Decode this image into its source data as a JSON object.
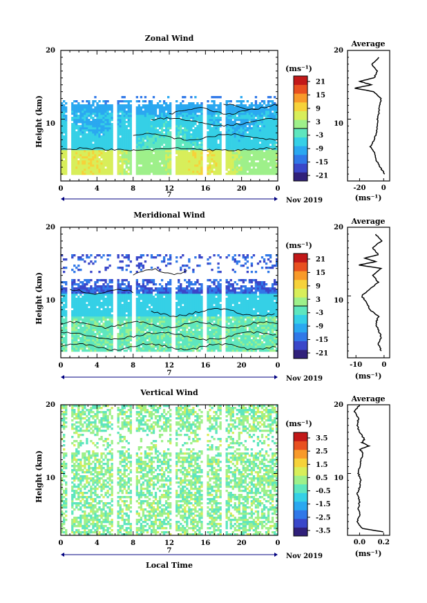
{
  "figure": {
    "x_axis_label": "Local Time",
    "date_label": "Nov 2019",
    "day_label": "7"
  },
  "colors": {
    "colormap": [
      "#30207a",
      "#3a47c9",
      "#3078e8",
      "#2aa8f0",
      "#35d0e6",
      "#5ee6be",
      "#9ef08a",
      "#d8ee5a",
      "#f6d23a",
      "#f89a2a",
      "#e85020",
      "#c21818"
    ],
    "avg_line": "#000000",
    "axis": "#000000",
    "time_axis_arrow": "#000080"
  },
  "chart_data": [
    {
      "type": "heatmap",
      "title": "Zonal Wind",
      "xlabel": "",
      "ylabel": "Height (km)",
      "xlim": [
        0,
        24
      ],
      "ylim": [
        1,
        20
      ],
      "xticks": [
        "0",
        "4",
        "8",
        "12",
        "16",
        "20",
        "0"
      ],
      "yticks": [
        "10",
        "20"
      ],
      "colorbar": {
        "unit": "(ms⁻¹)",
        "range": [
          -24,
          24
        ],
        "ticks": [
          "21",
          "15",
          "9",
          "3",
          "-3",
          "-9",
          "-15",
          "-21"
        ]
      },
      "profile": {
        "title": "Average",
        "xlabel": "(ms⁻¹)",
        "xlim": [
          -30,
          5
        ],
        "xticks": [
          "-20",
          "0"
        ],
        "heights": [
          2,
          3,
          4,
          5,
          6,
          7,
          8,
          9,
          10,
          11,
          12,
          13,
          14,
          14.5,
          15,
          15.5,
          16,
          17,
          18,
          19
        ],
        "values": [
          1,
          -3,
          -6,
          -7,
          -11,
          -8,
          -6,
          -5,
          -5,
          -4,
          -3,
          -2,
          -8,
          -24,
          -10,
          -20,
          -8,
          -5,
          -10,
          -4
        ]
      }
    },
    {
      "type": "heatmap",
      "title": "Meridional Wind",
      "xlabel": "",
      "ylabel": "Height (km)",
      "xlim": [
        0,
        24
      ],
      "ylim": [
        1,
        20
      ],
      "xticks": [
        "0",
        "4",
        "8",
        "12",
        "16",
        "20",
        "0"
      ],
      "yticks": [
        "10",
        "20"
      ],
      "colorbar": {
        "unit": "(ms⁻¹)",
        "range": [
          -24,
          24
        ],
        "ticks": [
          "21",
          "15",
          "9",
          "3",
          "-3",
          "-9",
          "-15",
          "-21"
        ]
      },
      "profile": {
        "title": "Average",
        "xlabel": "(ms⁻¹)",
        "xlim": [
          -13,
          2
        ],
        "xticks": [
          "-10",
          "0"
        ],
        "heights": [
          2,
          3,
          4,
          5,
          6,
          7,
          8,
          9,
          10,
          11,
          12,
          13,
          14,
          14.5,
          15,
          15.5,
          16,
          17,
          18,
          19
        ],
        "values": [
          -1,
          -2,
          -1,
          -2,
          -3,
          -2,
          -5,
          -6,
          -8,
          -5,
          -2,
          -4,
          -1,
          -9,
          -3,
          -7,
          -2,
          -4,
          -1,
          -3
        ]
      }
    },
    {
      "type": "heatmap",
      "title": "Vertical Wind",
      "xlabel": "Local Time",
      "ylabel": "Height (km)",
      "xlim": [
        0,
        24
      ],
      "ylim": [
        1,
        20
      ],
      "xticks": [
        "0",
        "4",
        "8",
        "12",
        "16",
        "20",
        "0"
      ],
      "yticks": [
        "10",
        "20"
      ],
      "colorbar": {
        "unit": "(ms⁻¹)",
        "range": [
          -4,
          4
        ],
        "ticks": [
          "3.5",
          "2.5",
          "1.5",
          "0.5",
          "-0.5",
          "-1.5",
          "-2.5",
          "-3.5"
        ]
      },
      "profile": {
        "title": "Average",
        "xlabel": "(ms⁻¹)",
        "xlim": [
          -0.1,
          0.25
        ],
        "xticks": [
          "0.0",
          "0.2"
        ],
        "heights": [
          1.5,
          2,
          3,
          4,
          5,
          6,
          7,
          8,
          9,
          10,
          11,
          12,
          13,
          13.5,
          14,
          14.5,
          15,
          16,
          17,
          18,
          19,
          20
        ],
        "values": [
          0.2,
          0.02,
          -0.02,
          0.0,
          -0.01,
          0.0,
          -0.02,
          0.0,
          0.01,
          -0.01,
          0.0,
          0.01,
          0.03,
          0.0,
          0.08,
          0.02,
          0.04,
          0.0,
          -0.02,
          -0.01,
          -0.04,
          0.0
        ]
      }
    }
  ]
}
